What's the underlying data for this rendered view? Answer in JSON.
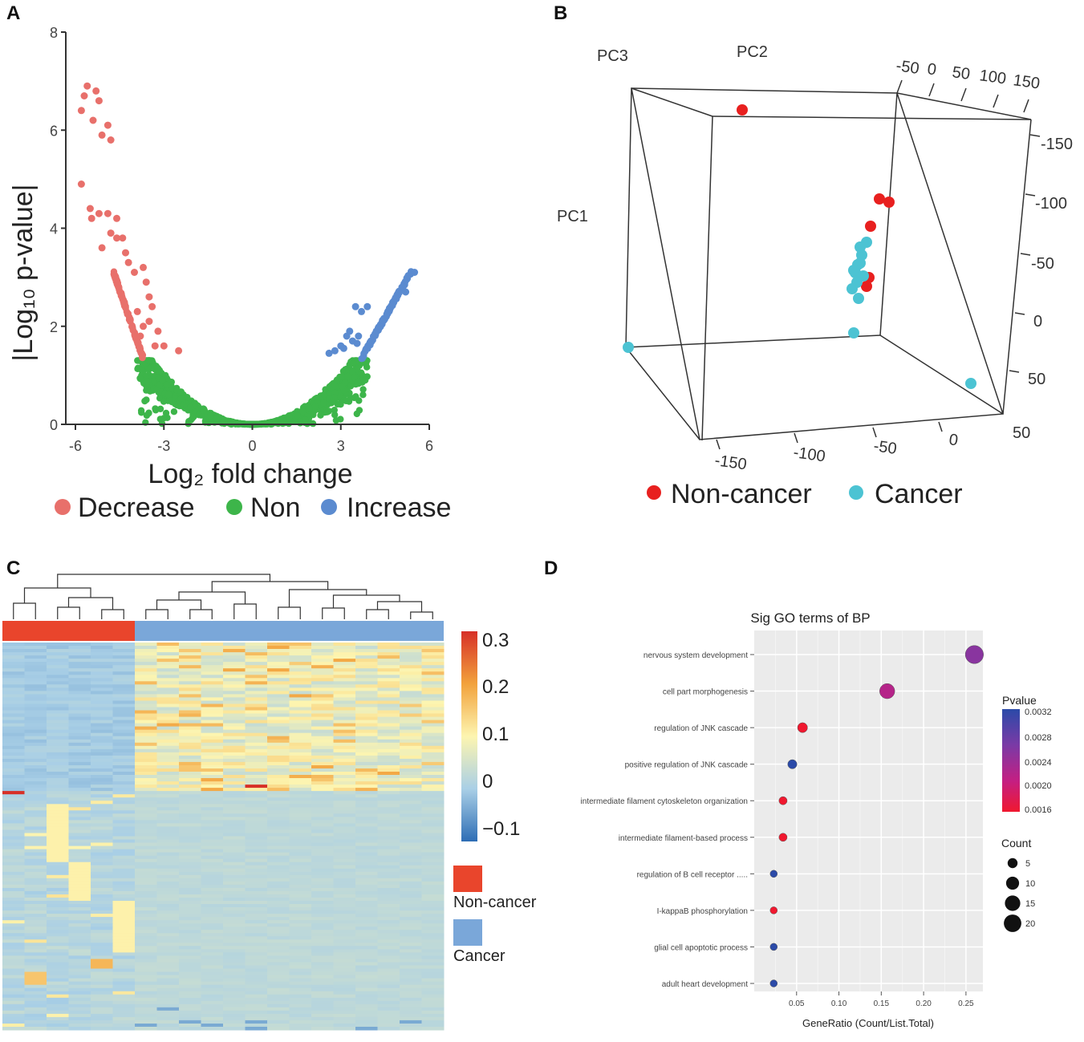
{
  "panels": {
    "a": "A",
    "b": "B",
    "c": "C",
    "d": "D"
  },
  "chart_data": [
    {
      "panel": "A",
      "type": "scatter",
      "title": "",
      "xlabel": "Log₂ fold change",
      "ylabel": "|Log₁₀ p-value|",
      "xlim": [
        -6,
        6
      ],
      "ylim": [
        0,
        8
      ],
      "xticks": [
        "-6",
        "-3",
        "0",
        "3",
        "6"
      ],
      "yticks": [
        "0",
        "2",
        "4",
        "6",
        "8"
      ],
      "legend": {
        "position": "bottom",
        "items": [
          {
            "label": "Decrease",
            "color": "#e8706b"
          },
          {
            "label": "Non",
            "color": "#3db54a"
          },
          {
            "label": "Increase",
            "color": "#5b8bd0"
          }
        ]
      },
      "threshold_p": 1.3,
      "series": [
        {
          "name": "Decrease",
          "color": "#e8706b",
          "points": [
            [
              -5.8,
              6.4
            ],
            [
              -5.7,
              6.7
            ],
            [
              -5.6,
              6.9
            ],
            [
              -5.3,
              6.8
            ],
            [
              -5.4,
              6.2
            ],
            [
              -5.2,
              6.6
            ],
            [
              -5.1,
              5.9
            ],
            [
              -4.9,
              6.1
            ],
            [
              -4.8,
              5.8
            ],
            [
              -5.8,
              4.9
            ],
            [
              -5.5,
              4.4
            ],
            [
              -5.45,
              4.2
            ],
            [
              -5.2,
              4.3
            ],
            [
              -4.9,
              4.3
            ],
            [
              -4.6,
              4.2
            ],
            [
              -4.8,
              3.9
            ],
            [
              -4.6,
              3.8
            ],
            [
              -4.4,
              3.8
            ],
            [
              -5.1,
              3.6
            ],
            [
              -4.3,
              3.5
            ],
            [
              -4.2,
              3.3
            ],
            [
              -4.0,
              3.1
            ],
            [
              -3.7,
              3.2
            ],
            [
              -3.6,
              2.9
            ],
            [
              -3.5,
              2.6
            ],
            [
              -3.4,
              2.4
            ],
            [
              -3.9,
              2.3
            ],
            [
              -3.7,
              2.0
            ],
            [
              -3.5,
              2.1
            ],
            [
              -3.2,
              1.9
            ],
            [
              -3.0,
              1.6
            ],
            [
              -2.5,
              1.5
            ],
            [
              -3.3,
              1.6
            ],
            [
              -3.8,
              1.8
            ]
          ]
        },
        {
          "name": "Increase",
          "color": "#5b8bd0",
          "points": [
            [
              3.5,
              2.4
            ],
            [
              3.7,
              2.3
            ],
            [
              3.9,
              2.4
            ],
            [
              3.3,
              1.9
            ],
            [
              3.2,
              1.8
            ],
            [
              3.4,
              1.7
            ],
            [
              3.6,
              1.8
            ],
            [
              3.0,
              1.6
            ],
            [
              2.8,
              1.5
            ],
            [
              2.6,
              1.45
            ],
            [
              3.55,
              1.65
            ],
            [
              3.1,
              1.55
            ],
            [
              5.2,
              2.7
            ],
            [
              5.5,
              3.1
            ]
          ]
        }
      ],
      "non_note": "dense green V-shaped cloud of non-significant genes below p threshold"
    },
    {
      "panel": "B",
      "type": "scatter",
      "title": "",
      "axis_labels": {
        "pc1": "PC1",
        "pc2": "PC2",
        "pc3": "PC3"
      },
      "top_ticks": [
        "-50",
        "0",
        "50",
        "100",
        "150"
      ],
      "right_ticks": [
        "-150",
        "-100",
        "-50",
        "0",
        "50",
        "50"
      ],
      "bottom_ticks": [
        "-150",
        "-100",
        "-50",
        "0"
      ],
      "legend": {
        "position": "bottom",
        "items": [
          {
            "label": "Non-cancer",
            "color": "#e8201f"
          },
          {
            "label": "Cancer",
            "color": "#4cc3d3"
          }
        ]
      },
      "series": [
        {
          "name": "Non-cancer",
          "color": "#e8201f",
          "count": 6
        },
        {
          "name": "Cancer",
          "color": "#4cc3d3",
          "count": 14
        }
      ]
    },
    {
      "panel": "C",
      "type": "heatmap",
      "title": "",
      "scale_ticks": [
        "0.3",
        "0.2",
        "0.1",
        "0",
        "−0.1"
      ],
      "scale_range": [
        -0.13,
        0.32
      ],
      "scale_colors": [
        "#2d6db5",
        "#a9cfe6",
        "#fdf5b0",
        "#f2a23c",
        "#d73027"
      ],
      "groups": [
        {
          "label": "Non-cancer",
          "color": "#e9452c",
          "samples": 6
        },
        {
          "label": "Cancer",
          "color": "#7aa7d9",
          "samples": 14
        }
      ]
    },
    {
      "panel": "D",
      "type": "scatter",
      "title": "Sig GO terms of BP",
      "xlabel": "GeneRatio (Count/List.Total)",
      "ylabel": "",
      "xlim": [
        0.0,
        0.27
      ],
      "xticks": [
        0.05,
        0.1,
        0.15,
        0.2,
        0.25
      ],
      "xtick_labels": [
        "0.05",
        "0.10",
        "0.15",
        "0.20",
        "0.25"
      ],
      "categories": [
        "nervous system development",
        "cell part morphogenesis",
        "regulation of JNK cascade",
        "positive regulation of JNK cascade",
        "intermediate filament cytoskeleton organization",
        "intermediate filament-based process",
        "regulation of B cell receptor .....",
        "I-kappaB phosphorylation",
        "glial cell apoptotic process",
        "adult heart development"
      ],
      "gene_ratio": [
        0.26,
        0.157,
        0.057,
        0.045,
        0.034,
        0.034,
        0.023,
        0.023,
        0.023,
        0.023
      ],
      "count": [
        22,
        14,
        5,
        4,
        3,
        3,
        2,
        2,
        2,
        2
      ],
      "pvalue": [
        0.0026,
        0.0023,
        0.0016,
        0.0032,
        0.0016,
        0.0016,
        0.0032,
        0.0016,
        0.0032,
        0.0032
      ],
      "pvalue_legend": {
        "title": "Pvalue",
        "ticks": [
          "0.0032",
          "0.0028",
          "0.0024",
          "0.0020",
          "0.0016"
        ],
        "range": [
          0.0015,
          0.0032
        ]
      },
      "count_legend": {
        "title": "Count",
        "values": [
          5,
          10,
          15,
          20
        ]
      }
    }
  ]
}
